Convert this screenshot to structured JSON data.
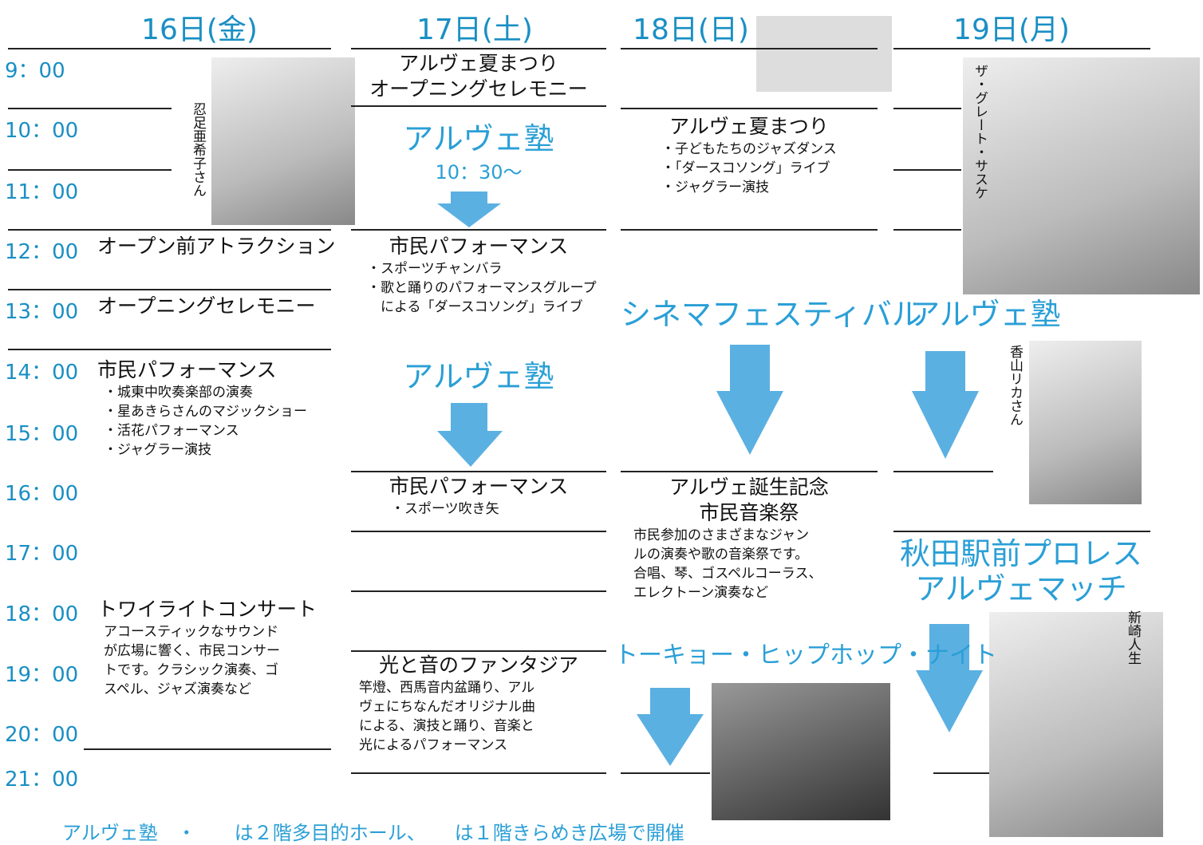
{
  "days": [
    "16日(金)",
    "17日(土)",
    "18日(日)",
    "19日(月)"
  ],
  "times": [
    "9：00",
    "10：00",
    "11：00",
    "12：00",
    "13：00",
    "14：00",
    "15：00",
    "16：00",
    "17：00",
    "18：00",
    "19：00",
    "20：00",
    "21：00"
  ],
  "events": [
    {
      "title": [
        "オープン前アトラクション"
      ],
      "lines": []
    },
    {
      "title": [
        "オープニングセレモニー"
      ],
      "lines": []
    },
    {
      "title": [
        "市民パフォーマンス"
      ],
      "lines": [
        "・城東中吹奏楽部の演奏",
        "・星あきらさんのマジックショー",
        "・活花パフォーマンス",
        "・ジャグラー演技"
      ]
    },
    {
      "title": [
        "トワイライトコンサート"
      ],
      "lines": [
        "アコースティックなサウンド",
        "が広場に響く、市民コンサー",
        "トです。クラシック演奏、ゴ",
        "スペル、ジャズ演奏など"
      ]
    },
    {
      "title": [
        "アルヴェ夏まつり",
        "オープニングセレモニー"
      ],
      "lines": []
    },
    {
      "title": [
        "アルヴェ塾"
      ],
      "lines": [
        "10：30～"
      ]
    },
    {
      "title": [
        "市民パフォーマンス"
      ],
      "lines": [
        "・スポーツチャンバラ",
        "・歌と踊りのパフォーマンスグループ",
        "　による「ダースコソング」ライブ"
      ]
    },
    {
      "title": [
        "アルヴェ塾"
      ],
      "lines": []
    },
    {
      "title": [
        "市民パフォーマンス"
      ],
      "lines": [
        "・スポーツ吹き矢"
      ]
    },
    {
      "title": [
        "光と音のファンタジア"
      ],
      "lines": [
        "竿燈、西馬音内盆踊り、アル",
        "ヴェにちなんだオリジナル曲",
        "による、演技と踊り、音楽と",
        "光によるパフォーマンス"
      ]
    },
    {
      "title": [
        "アルヴェ夏まつり"
      ],
      "lines": [
        "・子どもたちのジャズダンス",
        "・「ダースコソング」ライブ",
        "・ジャグラー演技"
      ]
    },
    {
      "title": [
        "シネマフェスティバル"
      ],
      "lines": []
    },
    {
      "title": [
        "アルヴェ誕生記念",
        "市民音楽祭"
      ],
      "lines": [
        "市民参加のさまざまなジャン",
        "ルの演奏や歌の音楽祭です。",
        "合唱、琴、ゴスペルコーラス、",
        "エレクトーン演奏など"
      ]
    },
    {
      "title": [
        "トーキョー・ヒップホップ・ナイト"
      ],
      "lines": []
    },
    {
      "title": [
        "アルヴェ塾"
      ],
      "lines": []
    },
    {
      "title": [
        "秋田駅前プロレス",
        "アルヴェマッチ"
      ],
      "lines": []
    }
  ],
  "captions": [
    "忍足亜希子さん",
    "ザ・グレート・サスケ",
    "香山リカさん",
    "新崎人生"
  ],
  "footer": "アルヴェ塾　・　　は２階多目的ホール、　　は１階きらめき広場で開催"
}
